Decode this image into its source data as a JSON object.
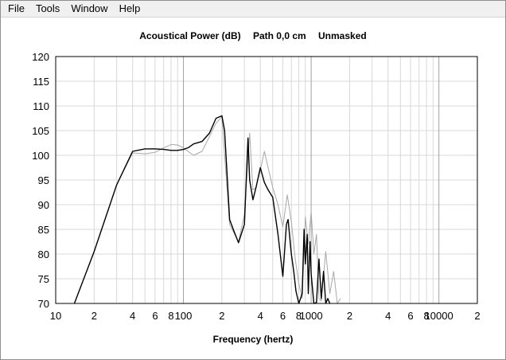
{
  "menu": {
    "items": [
      "File",
      "Tools",
      "Window",
      "Help"
    ]
  },
  "plot_title": {
    "quantity": "Acoustical Power (dB)",
    "path": "Path 0,0 cm",
    "mask": "Unmasked"
  },
  "colors": {
    "primary_curve": "#000000",
    "reference_curve": "#a8a8a8",
    "grid": "#d8d8d8",
    "axes": "#000000"
  },
  "chart_data": {
    "type": "line",
    "title": "Acoustical Power (dB)  Path 0,0 cm  Unmasked",
    "xlabel": "Frequency (hertz)",
    "ylabel": "",
    "xscale": "log",
    "xlim": [
      10,
      20000
    ],
    "ylim": [
      70,
      120
    ],
    "grid": true,
    "y_ticks": [
      "120",
      "115",
      "110",
      "105",
      "100",
      "95",
      "90",
      "85",
      "80",
      "75",
      "70"
    ],
    "x_ticks": [
      {
        "value": 10,
        "label": "10"
      },
      {
        "value": 20,
        "label": "2"
      },
      {
        "value": 40,
        "label": "4"
      },
      {
        "value": 60,
        "label": "6"
      },
      {
        "value": 80,
        "label": "8"
      },
      {
        "value": 100,
        "label": "100"
      },
      {
        "value": 200,
        "label": "2"
      },
      {
        "value": 400,
        "label": "4"
      },
      {
        "value": 600,
        "label": "6"
      },
      {
        "value": 800,
        "label": "8"
      },
      {
        "value": 1000,
        "label": "1000"
      },
      {
        "value": 2000,
        "label": "2"
      },
      {
        "value": 4000,
        "label": "4"
      },
      {
        "value": 6000,
        "label": "6"
      },
      {
        "value": 8000,
        "label": "8"
      },
      {
        "value": 10000,
        "label": "10000"
      },
      {
        "value": 20000,
        "label": "2"
      }
    ],
    "series": [
      {
        "style": "reference",
        "x": [
          14,
          20,
          30,
          40,
          50,
          60,
          70,
          80,
          90,
          100,
          120,
          140,
          160,
          180,
          200,
          230,
          270,
          300,
          330,
          350,
          370,
          400,
          430,
          460,
          500,
          550,
          600,
          650,
          700,
          750,
          800,
          850,
          900,
          950,
          1000,
          1050,
          1100,
          1150,
          1200,
          1300,
          1400,
          1500,
          1600,
          1700
        ],
        "y": [
          70,
          80.5,
          94,
          100.5,
          100.3,
          100.6,
          101.5,
          102.2,
          102.1,
          101.5,
          100,
          100.8,
          103.8,
          106.5,
          107.8,
          86,
          82.5,
          88,
          104.5,
          93,
          93.5,
          97,
          100.8,
          97.5,
          93.5,
          90,
          85.5,
          92,
          86.5,
          79,
          74,
          71,
          87.5,
          82,
          88.5,
          80,
          84,
          71,
          70.5,
          80.5,
          72,
          76.5,
          70,
          71
        ]
      },
      {
        "style": "primary",
        "x": [
          14,
          20,
          30,
          40,
          50,
          60,
          70,
          80,
          90,
          100,
          110,
          120,
          140,
          160,
          180,
          200,
          210,
          230,
          250,
          270,
          300,
          320,
          330,
          350,
          370,
          400,
          430,
          460,
          500,
          550,
          600,
          640,
          660,
          700,
          730,
          760,
          800,
          850,
          880,
          900,
          930,
          950,
          980,
          1000,
          1050,
          1100,
          1150,
          1200,
          1250,
          1300,
          1350,
          1400
        ],
        "y": [
          70,
          80.5,
          94,
          100.8,
          101.3,
          101.3,
          101.2,
          101,
          101,
          101.2,
          101.6,
          102.3,
          102.8,
          104.5,
          107.5,
          108,
          105,
          87,
          84.5,
          82.3,
          86,
          103.5,
          95,
          91,
          93.5,
          97.5,
          94.5,
          93,
          91.5,
          84,
          75.5,
          86,
          87,
          80,
          76.5,
          72.5,
          70,
          72,
          85,
          78,
          84,
          72,
          82.5,
          76,
          70,
          70.2,
          79,
          71,
          76.5,
          70,
          71,
          70
        ]
      }
    ]
  },
  "x_axis_label": "Frequency (hertz)"
}
